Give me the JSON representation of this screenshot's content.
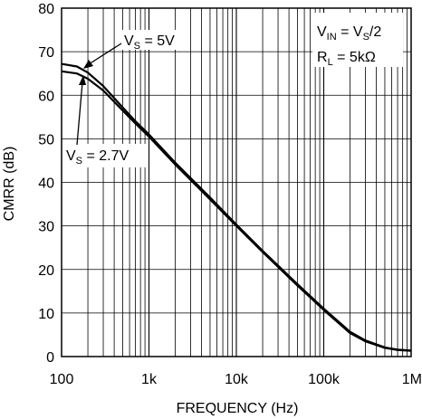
{
  "chart_data": {
    "type": "line",
    "xlabel": "FREQUENCY (Hz)",
    "ylabel": "CMRR (dB)",
    "xscale": "log",
    "xlim": [
      100,
      1000000
    ],
    "ylim": [
      0,
      80
    ],
    "grid": true,
    "x_ticks": [
      {
        "value": 100,
        "label": "100"
      },
      {
        "value": 1000,
        "label": "1k"
      },
      {
        "value": 10000,
        "label": "10k"
      },
      {
        "value": 100000,
        "label": "100k"
      },
      {
        "value": 1000000,
        "label": "1M"
      }
    ],
    "y_ticks": [
      0,
      10,
      20,
      30,
      40,
      50,
      60,
      70,
      80
    ],
    "conditions": {
      "vin": {
        "main": "V",
        "sub": "IN",
        "eq": " = V",
        "sub2": "S",
        "tail": "/2"
      },
      "rl": {
        "main": "R",
        "sub": "L",
        "tail": " = 5kΩ"
      }
    },
    "series": [
      {
        "name": "VS = 5V",
        "label": {
          "main": "V",
          "sub": "S",
          "tail": " = 5V"
        },
        "x": [
          100,
          150,
          200,
          300,
          500,
          700,
          1000,
          2000,
          5000,
          10000,
          20000,
          50000,
          100000,
          200000,
          300000,
          500000,
          700000,
          1000000
        ],
        "y": [
          67.2,
          66.6,
          65.2,
          62.1,
          57.2,
          54.0,
          51.0,
          44.5,
          36.5,
          30.3,
          24.3,
          16.6,
          11.0,
          5.7,
          3.7,
          2.1,
          1.6,
          1.4
        ]
      },
      {
        "name": "VS = 2.7V",
        "label": {
          "main": "V",
          "sub": "S",
          "tail": " = 2.7V"
        },
        "x": [
          100,
          150,
          200,
          300,
          500,
          700,
          1000,
          2000,
          5000,
          10000,
          20000,
          50000,
          100000,
          200000,
          300000,
          500000,
          700000,
          1000000
        ],
        "y": [
          65.5,
          65.0,
          63.8,
          61.1,
          56.5,
          53.5,
          50.5,
          44.1,
          36.1,
          30.0,
          24.0,
          16.3,
          10.7,
          5.4,
          3.5,
          2.0,
          1.5,
          1.3
        ]
      }
    ]
  }
}
